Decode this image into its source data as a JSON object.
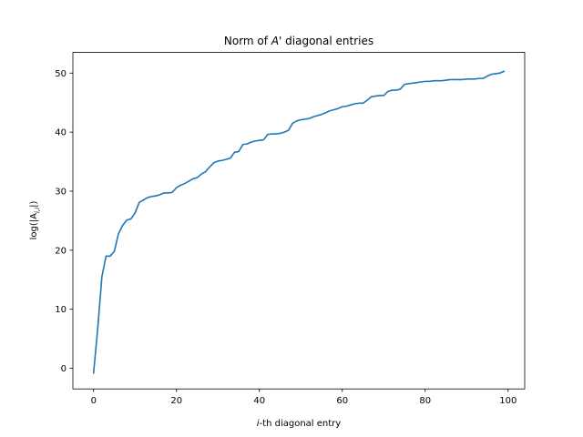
{
  "chart_data": {
    "type": "line",
    "title": {
      "prefix": "Norm of ",
      "symbol": "A",
      "suffix": "' diagonal entries"
    },
    "xlabel": {
      "symbol": "i",
      "suffix": "-th diagonal entry"
    },
    "ylabel": "log(|A",
    "ylabel_sub": "i,i",
    "ylabel_close": "|)",
    "xlim": [
      -5,
      104
    ],
    "ylim": [
      -3.5,
      53.5
    ],
    "xticks": [
      0,
      20,
      40,
      60,
      80,
      100
    ],
    "yticks": [
      0,
      10,
      20,
      30,
      40,
      50
    ],
    "grid": false,
    "color": "#1f77b4",
    "series": [
      {
        "x": [
          0,
          1,
          2,
          3,
          4,
          5,
          6,
          7,
          8,
          9,
          10,
          11,
          12,
          13,
          14,
          15,
          16,
          17,
          18,
          19,
          20,
          21,
          22,
          23,
          24,
          25,
          26,
          27,
          28,
          29,
          30,
          31,
          32,
          33,
          34,
          35,
          36,
          37,
          38,
          39,
          40,
          41,
          42,
          43,
          44,
          45,
          46,
          47,
          48,
          49,
          50,
          51,
          52,
          53,
          54,
          55,
          56,
          57,
          58,
          59,
          60,
          61,
          62,
          63,
          64,
          65,
          66,
          67,
          68,
          69,
          70,
          71,
          72,
          73,
          74,
          75,
          76,
          77,
          78,
          79,
          80,
          81,
          82,
          83,
          84,
          85,
          86,
          87,
          88,
          89,
          90,
          91,
          92,
          93,
          94,
          95,
          96,
          97,
          98,
          99
        ],
        "values": [
          -0.8,
          6.8,
          15.5,
          19.0,
          19.0,
          19.8,
          22.8,
          24.2,
          25.1,
          25.3,
          26.3,
          28.1,
          28.5,
          28.9,
          29.1,
          29.2,
          29.4,
          29.7,
          29.7,
          29.8,
          30.6,
          31.0,
          31.3,
          31.7,
          32.1,
          32.3,
          32.9,
          33.3,
          34.1,
          34.8,
          35.1,
          35.2,
          35.4,
          35.6,
          36.6,
          36.7,
          37.9,
          38.0,
          38.3,
          38.5,
          38.6,
          38.7,
          39.6,
          39.7,
          39.7,
          39.8,
          40.0,
          40.3,
          41.5,
          41.9,
          42.1,
          42.2,
          42.3,
          42.6,
          42.8,
          43.0,
          43.3,
          43.6,
          43.8,
          44.0,
          44.3,
          44.4,
          44.6,
          44.8,
          44.9,
          44.9,
          45.4,
          46.0,
          46.1,
          46.2,
          46.2,
          46.9,
          47.1,
          47.1,
          47.3,
          48.1,
          48.2,
          48.3,
          48.4,
          48.5,
          48.6,
          48.6,
          48.7,
          48.7,
          48.7,
          48.8,
          48.9,
          48.9,
          48.9,
          48.9,
          49.0,
          49.0,
          49.0,
          49.1,
          49.1,
          49.5,
          49.8,
          49.9,
          50.0,
          50.3
        ]
      }
    ]
  }
}
